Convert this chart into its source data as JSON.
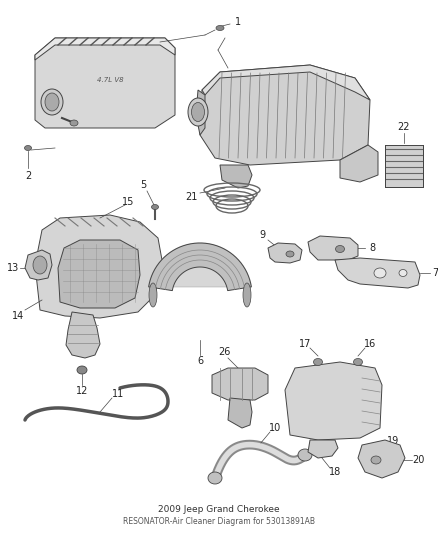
{
  "background": "#ffffff",
  "fig_width": 4.38,
  "fig_height": 5.33,
  "dpi": 100,
  "line_color": "#444444",
  "fill_light": "#e0e0e0",
  "fill_mid": "#c8c8c8",
  "fill_dark": "#aaaaaa",
  "label_fs": 7,
  "callout_lw": 0.5,
  "part_lw": 0.7,
  "title1": "2009 Jeep Grand Cherokee",
  "title2": "RESONATOR-Air Cleaner Diagram for 53013891AB"
}
